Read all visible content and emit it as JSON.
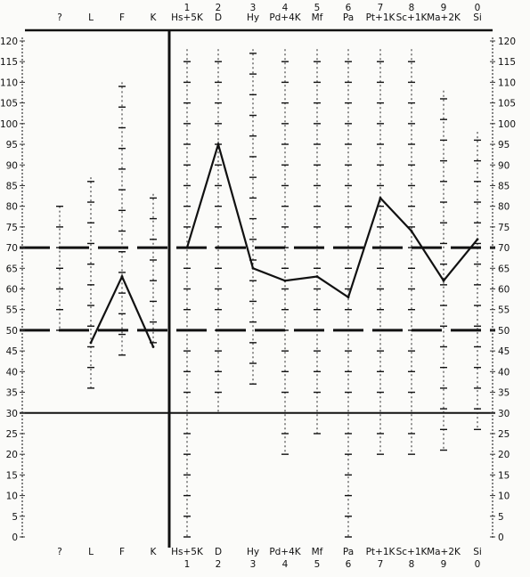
{
  "chart_data": {
    "type": "line",
    "title": "",
    "xlabel": "",
    "ylabel": "",
    "ylim": [
      0,
      120
    ],
    "y_ticks": [
      0,
      5,
      10,
      15,
      20,
      25,
      30,
      35,
      40,
      45,
      50,
      55,
      60,
      65,
      70,
      75,
      80,
      85,
      90,
      95,
      100,
      105,
      110,
      115,
      120
    ],
    "categories": [
      "?",
      "L",
      "F",
      "K",
      "Hs+5K",
      "D",
      "Hy",
      "Pd+4K",
      "Mf",
      "Pa",
      "Pt+1K",
      "Sc+1K",
      "Ma+2K",
      "Si"
    ],
    "scale_numbers": [
      "",
      "",
      "",
      "",
      "1",
      "2",
      "3",
      "4",
      "5",
      "6",
      "7",
      "8",
      "9",
      "0"
    ],
    "reference_lines": [
      {
        "value": 70,
        "style": "dashed"
      },
      {
        "value": 50,
        "style": "dashed"
      },
      {
        "value": 30,
        "style": "solid"
      }
    ],
    "series": [
      {
        "segment": "validity",
        "x": [
          "L",
          "F",
          "K"
        ],
        "values": [
          47,
          63,
          46
        ]
      },
      {
        "segment": "clinical",
        "x": [
          "Hs+5K",
          "D",
          "Hy",
          "Pd+4K",
          "Mf",
          "Pa",
          "Pt+1K",
          "Sc+1K",
          "Ma+2K",
          "Si"
        ],
        "values": [
          70,
          95,
          65,
          62,
          63,
          58,
          82,
          74,
          62,
          72
        ]
      }
    ]
  }
}
